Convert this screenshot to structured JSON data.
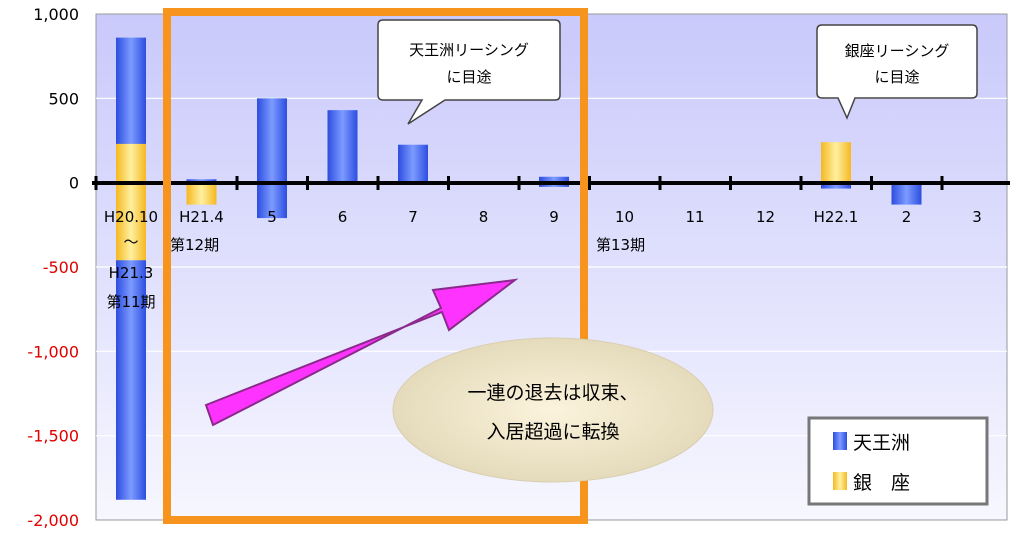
{
  "chart_data": {
    "type": "bar",
    "stacked": true,
    "title": "",
    "xlabel": "",
    "ylabel": "",
    "ylim": [
      -2000,
      1000
    ],
    "yticks": [
      "1,000",
      "500",
      "0",
      "-500",
      "-1,000",
      "-1,500",
      "-2,000"
    ],
    "ytick_values": [
      1000,
      500,
      0,
      -500,
      -1000,
      -1500,
      -2000
    ],
    "negative_tick_color": "#e00000",
    "categories": [
      "H20.10",
      "H21.4",
      "5",
      "6",
      "7",
      "8",
      "9",
      "10",
      "11",
      "12",
      "H22.1",
      "2",
      "3"
    ],
    "sub_labels": [
      {
        "index": 0,
        "lines": [
          "～",
          "H21.3",
          "第11期"
        ]
      },
      {
        "index": 1,
        "lines": [
          "第12期"
        ]
      },
      {
        "index": 7,
        "lines": [
          "第13期"
        ]
      }
    ],
    "series": [
      {
        "name": "天王洲",
        "color": "#3a5cf0",
        "segments": [
          [
            0,
            860,
            -1880
          ],
          [
            1,
            20,
            0
          ],
          [
            2,
            500,
            -210
          ],
          [
            3,
            430,
            0
          ],
          [
            4,
            225,
            0
          ],
          [
            5,
            0,
            0
          ],
          [
            6,
            35,
            -25
          ],
          [
            7,
            0,
            0
          ],
          [
            8,
            0,
            0
          ],
          [
            9,
            0,
            0
          ],
          [
            10,
            0,
            -35
          ],
          [
            11,
            0,
            -130
          ],
          [
            12,
            0,
            0
          ]
        ]
      },
      {
        "name": "銀　座",
        "color": "#f5c430",
        "segments": [
          [
            0,
            230,
            -460
          ],
          [
            1,
            0,
            -130
          ],
          [
            2,
            0,
            0
          ],
          [
            3,
            0,
            0
          ],
          [
            4,
            0,
            0
          ],
          [
            5,
            0,
            0
          ],
          [
            6,
            0,
            0
          ],
          [
            7,
            0,
            0
          ],
          [
            8,
            0,
            0
          ],
          [
            9,
            0,
            0
          ],
          [
            10,
            240,
            0
          ],
          [
            11,
            0,
            0
          ],
          [
            12,
            0,
            0
          ]
        ]
      }
    ],
    "grid": true,
    "legend_position": "bottom-right",
    "highlight_box_color": "#f7941d",
    "arrow_color": "#ff00ff",
    "background_color": "#cfd0fb"
  },
  "annotations": {
    "callout_left": [
      "天王洲リーシング",
      "に目途"
    ],
    "callout_right": [
      "銀座リーシング",
      "に目途"
    ],
    "ellipse": [
      "一連の退去は収束、",
      "入居超過に転換"
    ]
  },
  "legend": [
    {
      "label": "天王洲",
      "color": "#3a5cf0"
    },
    {
      "label": "銀　座",
      "color": "#f5c430"
    }
  ]
}
